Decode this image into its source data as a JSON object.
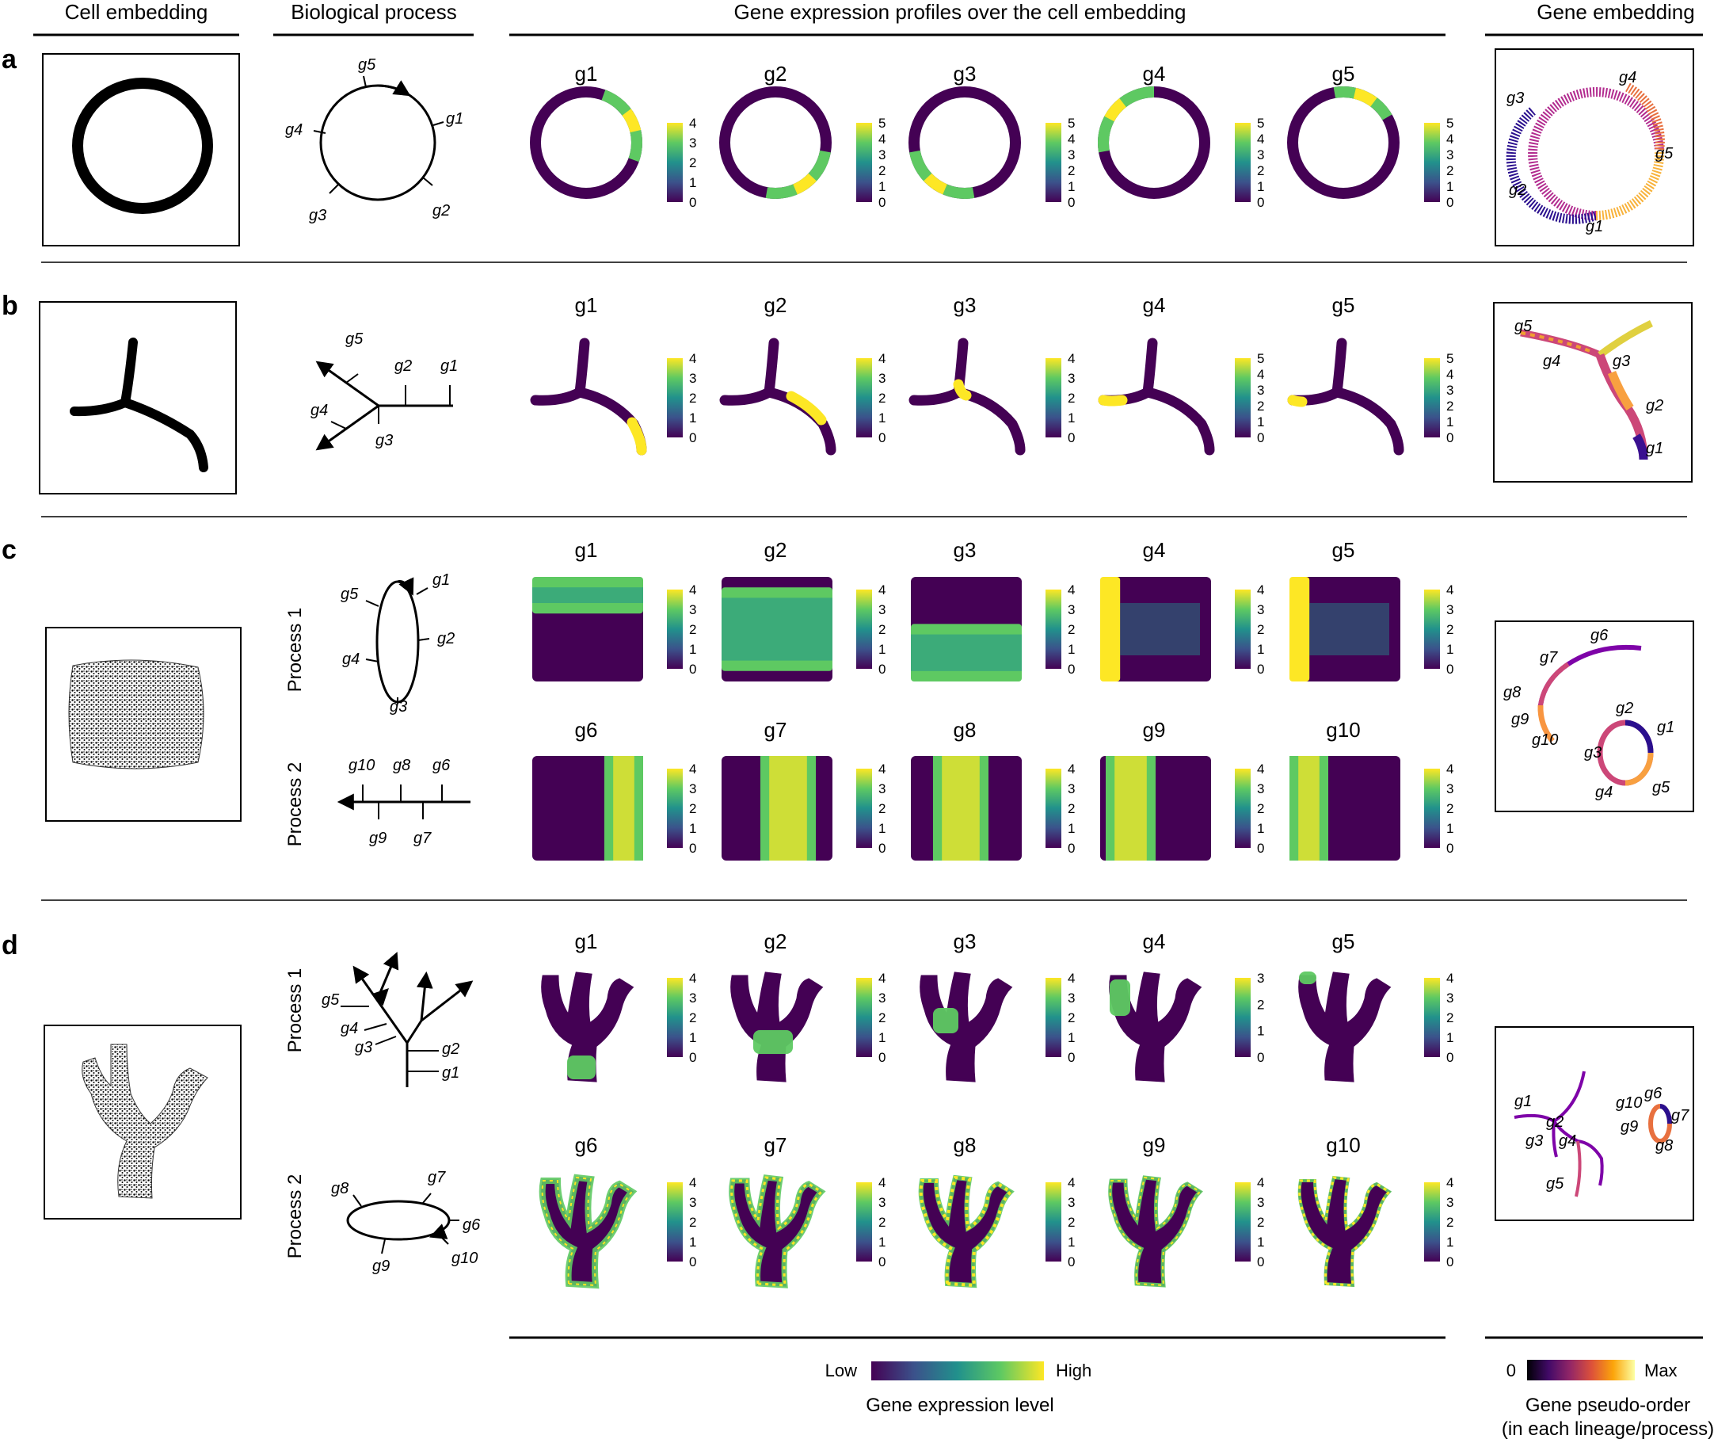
{
  "headers": {
    "cell_embedding": "Cell embedding",
    "biological_process": "Biological process",
    "gene_expression_profiles": "Gene expression profiles over the cell embedding",
    "gene_embedding": "Gene embedding"
  },
  "panels": {
    "a": {
      "label": "a",
      "process_genes": [
        "g1",
        "g2",
        "g3",
        "g4",
        "g5"
      ],
      "profile_titles": [
        "g1",
        "g2",
        "g3",
        "g4",
        "g5"
      ],
      "colorbar_max": [
        4,
        5,
        5,
        5,
        5
      ],
      "gene_embedding_labels": [
        "g1",
        "g2",
        "g3",
        "g4",
        "g5"
      ]
    },
    "b": {
      "label": "b",
      "process_genes": [
        "g1",
        "g2",
        "g3",
        "g4",
        "g5"
      ],
      "profile_titles": [
        "g1",
        "g2",
        "g3",
        "g4",
        "g5"
      ],
      "colorbar_max": [
        4,
        4,
        4,
        5,
        5
      ],
      "gene_embedding_labels": [
        "g1",
        "g2",
        "g3",
        "g4",
        "g5"
      ]
    },
    "c": {
      "label": "c",
      "process1_label": "Process 1",
      "process2_label": "Process 2",
      "process1_genes": [
        "g1",
        "g2",
        "g3",
        "g4",
        "g5"
      ],
      "process2_genes": [
        "g6",
        "g7",
        "g8",
        "g9",
        "g10"
      ],
      "row1_titles": [
        "g1",
        "g2",
        "g3",
        "g4",
        "g5"
      ],
      "row2_titles": [
        "g6",
        "g7",
        "g8",
        "g9",
        "g10"
      ],
      "colorbar_max_row1": [
        4,
        4,
        4,
        4,
        4
      ],
      "colorbar_max_row2": [
        4,
        4,
        4,
        4,
        4
      ],
      "gene_embedding_labels": [
        "g1",
        "g2",
        "g3",
        "g4",
        "g5",
        "g6",
        "g7",
        "g8",
        "g9",
        "g10"
      ]
    },
    "d": {
      "label": "d",
      "process1_label": "Process 1",
      "process2_label": "Process 2",
      "process1_genes": [
        "g1",
        "g2",
        "g3",
        "g4",
        "g5"
      ],
      "process2_genes": [
        "g6",
        "g7",
        "g8",
        "g9",
        "g10"
      ],
      "row1_titles": [
        "g1",
        "g2",
        "g3",
        "g4",
        "g5"
      ],
      "row2_titles": [
        "g6",
        "g7",
        "g8",
        "g9",
        "g10"
      ],
      "colorbar_max_row1": [
        4,
        4,
        4,
        3,
        4
      ],
      "colorbar_max_row2": [
        4,
        4,
        4,
        4,
        4
      ],
      "gene_embedding_labels": [
        "g1",
        "g2",
        "g3",
        "g4",
        "g5",
        "g6",
        "g7",
        "g8",
        "g9",
        "g10"
      ]
    }
  },
  "legend": {
    "expression_low": "Low",
    "expression_high": "High",
    "expression_title": "Gene expression level",
    "pseudo_min": "0",
    "pseudo_max": "Max",
    "pseudo_title_line1": "Gene pseudo-order",
    "pseudo_title_line2": "(in each lineage/process)"
  },
  "colors": {
    "viridis": [
      "#440154",
      "#3b528b",
      "#21918c",
      "#5ec962",
      "#fde725"
    ],
    "plasma": [
      "#0d0887",
      "#7e03a8",
      "#cc4778",
      "#f89540",
      "#f0f921"
    ],
    "inferno": [
      "#000004",
      "#420a68",
      "#932667",
      "#dd513a",
      "#fca50a",
      "#fcffa4"
    ],
    "ink": "#000000"
  }
}
